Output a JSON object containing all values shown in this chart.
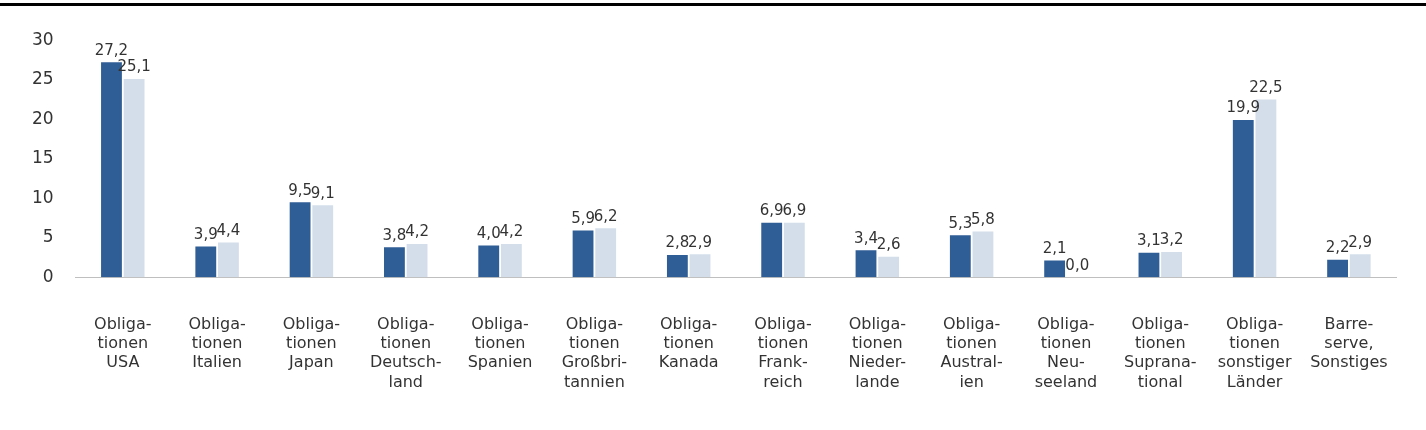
{
  "chart_data": {
    "type": "bar",
    "categories": [
      "Obliga-\ntionen\nUSA",
      "Obliga-\ntionen\nItalien",
      "Obliga-\ntionen\nJapan",
      "Obliga-\ntionen\nDeutsch-\nland",
      "Obliga-\ntionen\nSpanien",
      "Obliga-\ntionen\nGroßbri-\ntannien",
      "Obliga-\ntionen\nKanada",
      "Obliga-\ntionen\nFrank-\nreich",
      "Obliga-\ntionen\nNieder-\nlande",
      "Obliga-\ntionen\nAustral-\nien",
      "Obliga-\ntionen\nNeu-\nseeland",
      "Obliga-\ntionen\nSuprana-\ntional",
      "Obliga-\ntionen\nsonstiger\nLänder",
      "Barre-\nserve,\nSonstiges"
    ],
    "series": [
      {
        "color": "#2f5d95",
        "values": [
          27.2,
          3.9,
          9.5,
          3.8,
          4.0,
          5.9,
          2.8,
          6.9,
          3.4,
          5.3,
          2.1,
          3.1,
          19.9,
          2.2
        ],
        "value_labels": [
          "27,2",
          "3,9",
          "9,5",
          "3,8",
          "4,0",
          "5,9",
          "2,8",
          "6,9",
          "3,4",
          "5,3",
          "2,1",
          "3,1",
          "19,9",
          "2,2"
        ]
      },
      {
        "color": "#d3deea",
        "values": [
          25.1,
          4.4,
          9.1,
          4.2,
          4.2,
          6.2,
          2.9,
          6.9,
          2.6,
          5.8,
          0.0,
          3.2,
          22.5,
          2.9
        ],
        "value_labels": [
          "25,1",
          "4,4",
          "9,1",
          "4,2",
          "4,2",
          "6,2",
          "2,9",
          "6,9",
          "2,6",
          "5,8",
          "0,0",
          "3,2",
          "22,5",
          "2,9"
        ]
      }
    ],
    "ylim": [
      0,
      30
    ],
    "yticks": [
      0,
      5,
      10,
      15,
      20,
      25,
      30
    ],
    "grid": false,
    "legend": false
  }
}
